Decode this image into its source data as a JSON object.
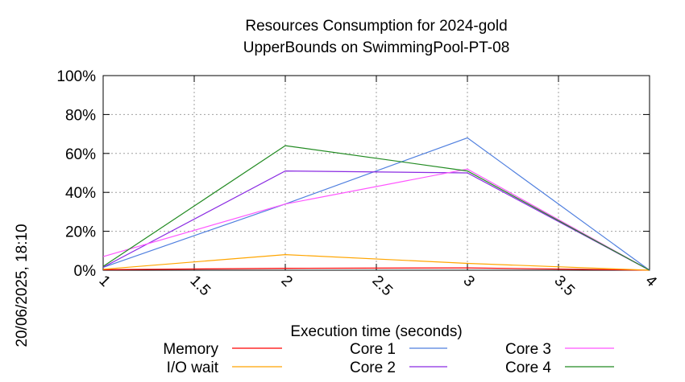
{
  "chart_data": {
    "type": "line",
    "title": "Resources Consumption for 2024-gold",
    "subtitle": "UpperBounds on SwimmingPool-PT-08",
    "xlabel": "Execution time (seconds)",
    "ylabel": "",
    "side_label": "20/06/2025, 18:10",
    "xlim": [
      1,
      4
    ],
    "ylim": [
      0,
      100
    ],
    "x_ticks": [
      1,
      1.5,
      2,
      2.5,
      3,
      3.5,
      4
    ],
    "x_tick_labels": [
      "1",
      "1.5",
      "2",
      "2.5",
      "3",
      "3.5",
      "4"
    ],
    "y_ticks": [
      0,
      20,
      40,
      60,
      80,
      100
    ],
    "y_tick_labels": [
      "0%",
      "20%",
      "40%",
      "60%",
      "80%",
      "100%"
    ],
    "grid": true,
    "legend_position": "bottom",
    "x": [
      1,
      2,
      3,
      4
    ],
    "series": [
      {
        "name": "Memory",
        "color": "#ff0000",
        "values": [
          0.3,
          1.0,
          1.2,
          0
        ]
      },
      {
        "name": "I/O wait",
        "color": "#ffa500",
        "values": [
          0.5,
          8,
          3.5,
          0
        ]
      },
      {
        "name": "Core 1",
        "color": "#4f7fdf",
        "values": [
          1.5,
          34,
          68,
          0
        ]
      },
      {
        "name": "Core 2",
        "color": "#8a2be2",
        "values": [
          1.5,
          51,
          50,
          0
        ]
      },
      {
        "name": "Core 3",
        "color": "#ff55ff",
        "values": [
          7,
          34,
          52,
          0
        ]
      },
      {
        "name": "Core 4",
        "color": "#228b22",
        "values": [
          2,
          64,
          51,
          0
        ]
      }
    ]
  }
}
